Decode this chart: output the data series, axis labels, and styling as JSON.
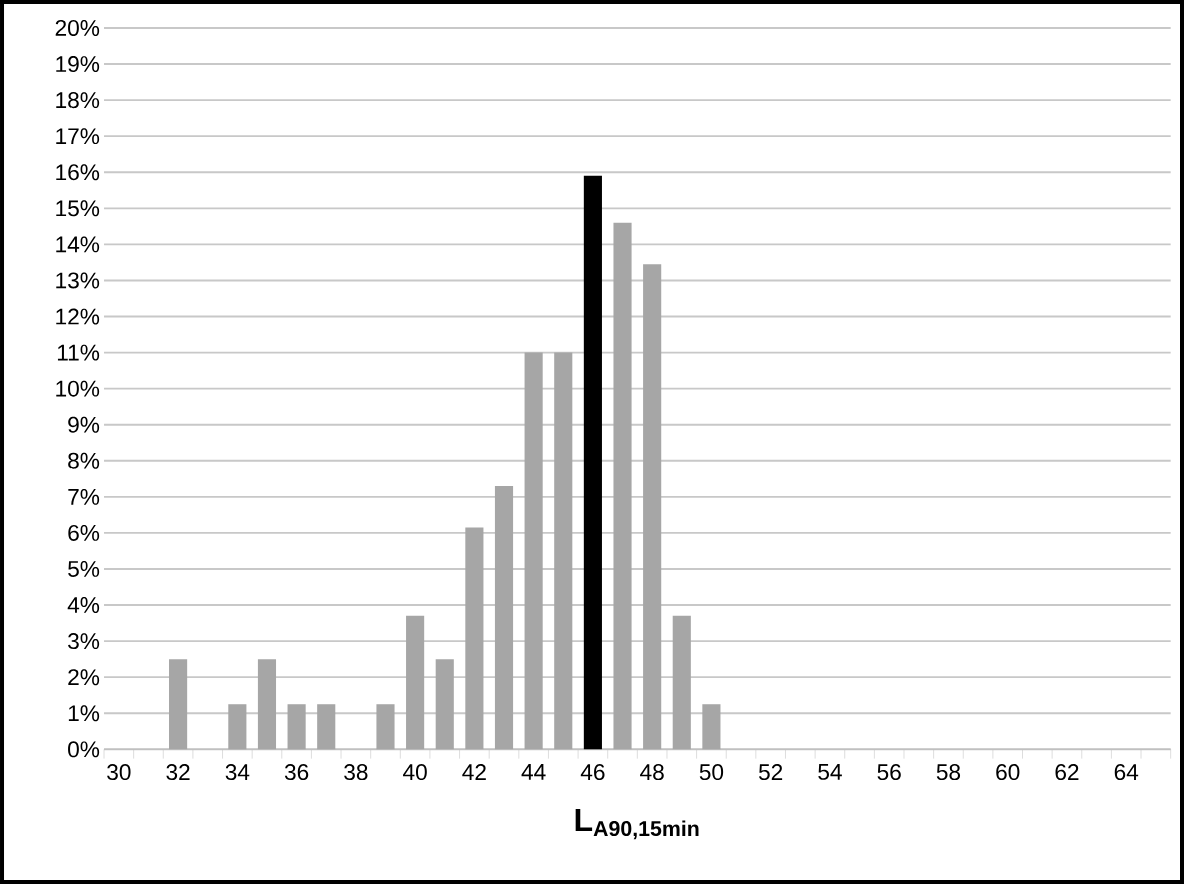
{
  "chart_data": {
    "type": "bar",
    "xlabel": "L$_{A90,15min}$",
    "categories": [
      "30",
      null,
      "32",
      null,
      "34",
      null,
      "36",
      null,
      "38",
      null,
      "40",
      null,
      "42",
      null,
      "44",
      null,
      "46",
      null,
      "48",
      null,
      "50",
      null,
      "52",
      null,
      "54",
      null,
      "56",
      null,
      "58",
      null,
      "60",
      null,
      "62",
      null,
      "64",
      null
    ],
    "values": [
      0,
      0,
      2.5,
      0,
      1.25,
      2.5,
      1.25,
      1.25,
      0,
      1.25,
      3.7,
      2.5,
      6.15,
      7.3,
      11,
      11,
      15.9,
      14.6,
      13.45,
      3.7,
      1.25,
      0,
      0,
      0,
      0,
      0,
      0,
      0,
      0,
      0,
      0,
      0,
      0,
      0,
      0,
      0
    ],
    "colors": [
      "#a6a6a6",
      "#a6a6a6",
      "#a6a6a6",
      "#a6a6a6",
      "#a6a6a6",
      "#a6a6a6",
      "#a6a6a6",
      "#a6a6a6",
      "#a6a6a6",
      "#a6a6a6",
      "#a6a6a6",
      "#a6a6a6",
      "#a6a6a6",
      "#a6a6a6",
      "#a6a6a6",
      "#a6a6a6",
      "#000000",
      "#a6a6a6",
      "#a6a6a6",
      "#a6a6a6",
      "#a6a6a6",
      "#a6a6a6",
      "#a6a6a6",
      "#a6a6a6",
      "#a6a6a6",
      "#a6a6a6",
      "#a6a6a6",
      "#a6a6a6",
      "#a6a6a6",
      "#a6a6a6",
      "#a6a6a6",
      "#a6a6a6",
      "#a6a6a6",
      "#a6a6a6",
      "#a6a6a6",
      "#a6a6a6"
    ],
    "ylim": [
      0,
      20
    ],
    "yticks": [
      {
        "value": 0,
        "label": "0%"
      },
      {
        "value": 1,
        "label": "1%"
      },
      {
        "value": 2,
        "label": "2%"
      },
      {
        "value": 3,
        "label": "3%"
      },
      {
        "value": 4,
        "label": "4%"
      },
      {
        "value": 5,
        "label": "5%"
      },
      {
        "value": 6,
        "label": "6%"
      },
      {
        "value": 7,
        "label": "7%"
      },
      {
        "value": 8,
        "label": "8%"
      },
      {
        "value": 9,
        "label": "9%"
      },
      {
        "value": 10,
        "label": "10%"
      },
      {
        "value": 11,
        "label": "11%"
      },
      {
        "value": 12,
        "label": "12%"
      },
      {
        "value": 13,
        "label": "13%"
      },
      {
        "value": 14,
        "label": "14%"
      },
      {
        "value": 15,
        "label": "15%"
      },
      {
        "value": 16,
        "label": "16%"
      },
      {
        "value": 17,
        "label": "17%"
      },
      {
        "value": 18,
        "label": "18%"
      },
      {
        "value": 19,
        "label": "19%"
      },
      {
        "value": 20,
        "label": "20%"
      }
    ],
    "grid": "y"
  }
}
